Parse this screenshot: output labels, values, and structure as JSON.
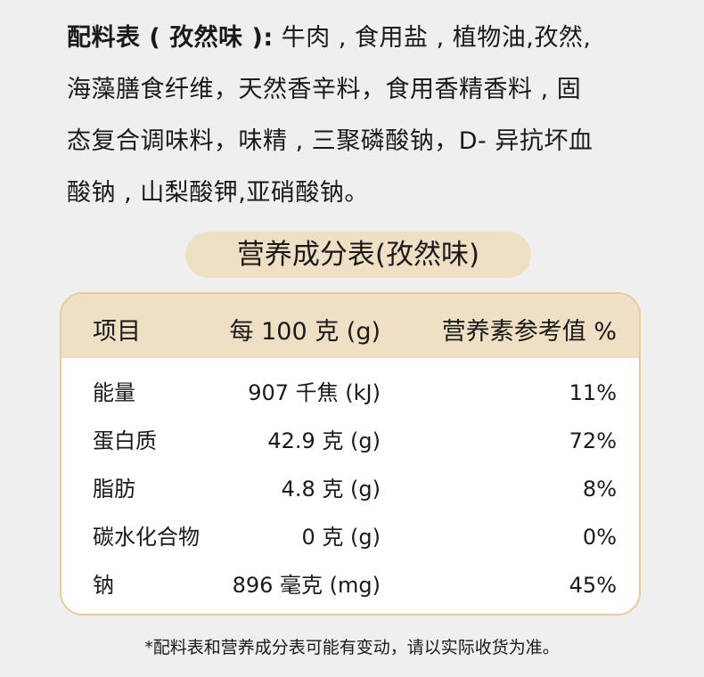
{
  "ingredients": {
    "label": "配料表 ( 孜然味 ):",
    "lines": [
      " 牛肉 , 食用盐 , 植物油,孜然,",
      "海藻膳食纤维，天然香辛料，食用香精香料 , 固",
      "态复合调味料，味精 , 三聚磷酸钠，D- 异抗坏血",
      "酸钠 , 山梨酸钾,亚硝酸钠。"
    ]
  },
  "nutrition": {
    "title": "营养成分表(孜然味)",
    "headers": [
      "项目",
      "每 100 克 (g)",
      "营养素参考值 %"
    ],
    "rows": [
      [
        "能量",
        "907 千焦 (kJ)",
        "11%"
      ],
      [
        "蛋白质",
        "42.9 克 (g)",
        "72%"
      ],
      [
        "脂肪",
        "4.8 克 (g)",
        "8%"
      ],
      [
        "碳水化合物",
        "0 克 (g)",
        "0%"
      ],
      [
        "钠",
        "896 毫克 (mg)",
        "45%"
      ]
    ]
  },
  "footnote": "*配料表和营养成分表可能有变动，请以实际收货为准。",
  "colors": {
    "background": "#efefef",
    "accent": "#efdfc4",
    "border": "#e6cb9c"
  }
}
